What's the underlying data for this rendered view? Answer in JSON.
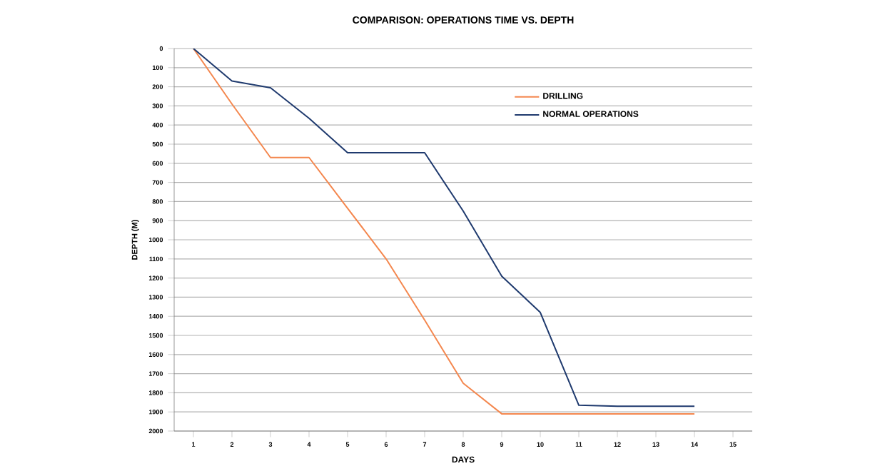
{
  "chart_data": {
    "type": "line",
    "title": "COMPARISON: OPERATIONS TIME VS. DEPTH",
    "xlabel": "DAYS",
    "ylabel": "DEPTH (M)",
    "x": [
      1,
      2,
      3,
      4,
      5,
      6,
      7,
      8,
      9,
      10,
      11,
      12,
      13,
      14
    ],
    "series": [
      {
        "name": "DRILLING",
        "color": "#f4874e",
        "values": [
          0,
          290,
          570,
          570,
          835,
          1100,
          1420,
          1750,
          1910,
          1910,
          1910,
          1910,
          1910,
          1910
        ]
      },
      {
        "name": "NORMAL OPERATIONS",
        "color": "#1f3a6e",
        "values": [
          0,
          170,
          205,
          365,
          545,
          545,
          545,
          850,
          1190,
          1380,
          1865,
          1870,
          1870,
          1870
        ]
      }
    ],
    "xlim": [
      0.5,
      15.5
    ],
    "xticks": [
      1,
      2,
      3,
      4,
      5,
      6,
      7,
      8,
      9,
      10,
      11,
      12,
      13,
      14,
      15
    ],
    "ylim": [
      2000,
      0
    ],
    "yticks": [
      0,
      100,
      200,
      300,
      400,
      500,
      600,
      700,
      800,
      900,
      1000,
      1100,
      1200,
      1300,
      1400,
      1500,
      1600,
      1700,
      1800,
      1900,
      2000
    ],
    "grid": "y",
    "legend": "top right",
    "marker": "none",
    "line_style": "solid"
  }
}
